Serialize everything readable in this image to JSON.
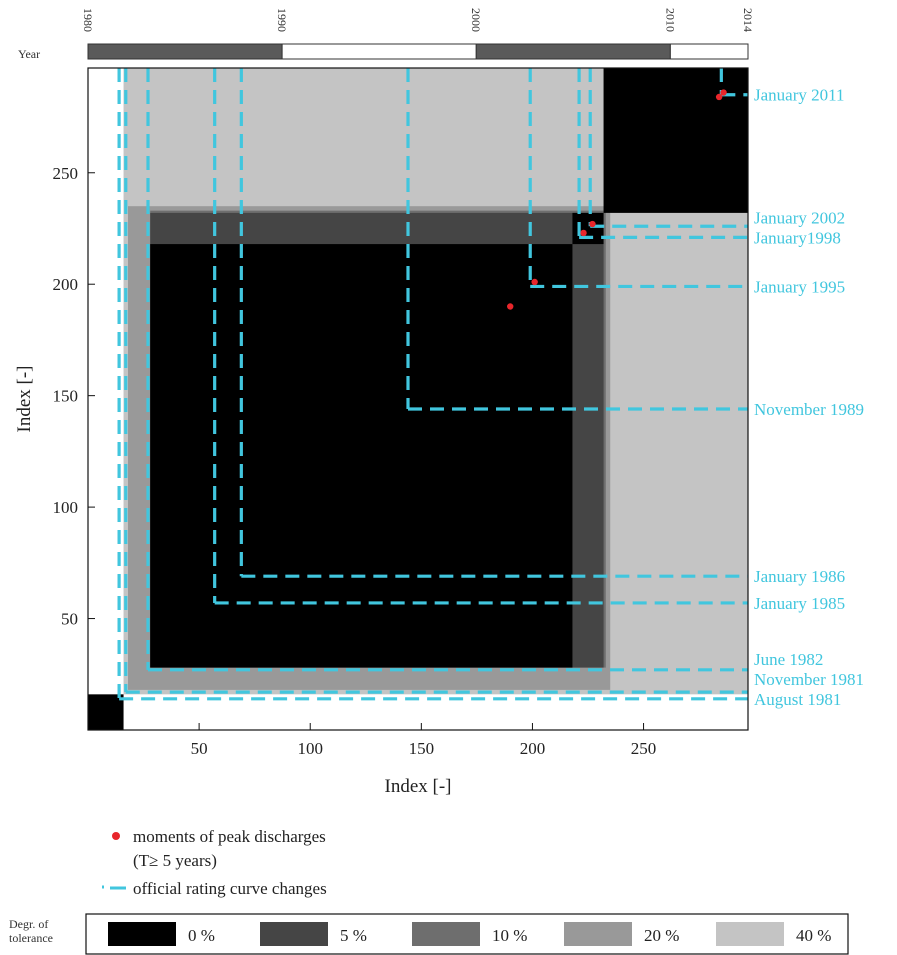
{
  "chart_data": {
    "type": "heatmap",
    "title": "",
    "xlabel": "Index [-]",
    "ylabel": "Index [-]",
    "xlim": [
      0,
      297
    ],
    "ylim": [
      0,
      297
    ],
    "x_ticks": [
      50,
      100,
      150,
      200,
      250
    ],
    "y_ticks": [
      50,
      100,
      150,
      200,
      250
    ],
    "year_bar": {
      "label": "Year",
      "ticks": [
        "1980",
        "1990",
        "2000",
        "2010",
        "2014"
      ],
      "segments": [
        {
          "from": "1980",
          "to": "1990",
          "fill": "#5a5a5a"
        },
        {
          "from": "1990",
          "to": "2000",
          "fill": "#ffffff"
        },
        {
          "from": "2000",
          "to": "2010",
          "fill": "#5a5a5a"
        },
        {
          "from": "2010",
          "to": "2014",
          "fill": "#ffffff"
        }
      ]
    },
    "tolerance_levels": [
      {
        "label": "0 %",
        "color": "#000000"
      },
      {
        "label": "5 %",
        "color": "#454545"
      },
      {
        "label": "10 %",
        "color": "#6e6e6e"
      },
      {
        "label": "20 %",
        "color": "#999999"
      },
      {
        "label": "40 %",
        "color": "#c4c4c4"
      }
    ],
    "tolerance_blocks": [
      {
        "level": 4,
        "from": 16,
        "to": 297
      },
      {
        "level": 3,
        "from": 18,
        "to": 235
      },
      {
        "level": 2,
        "from": 28,
        "to": 233
      },
      {
        "level": 1,
        "from": 28,
        "to": 232
      },
      {
        "level": 0,
        "from": 28,
        "to": 218
      },
      {
        "level": 0,
        "from": 0,
        "to": 16
      },
      {
        "level": 0,
        "from": 218,
        "to": 232
      },
      {
        "level": 0,
        "from": 232,
        "to": 297
      }
    ],
    "peak_discharges": [
      {
        "x": 190,
        "y": 190
      },
      {
        "x": 201,
        "y": 201
      },
      {
        "x": 223,
        "y": 223
      },
      {
        "x": 227,
        "y": 227
      },
      {
        "x": 284,
        "y": 284
      },
      {
        "x": 286,
        "y": 286
      }
    ],
    "rating_curve_changes": [
      {
        "label": "August 1981",
        "index": 14
      },
      {
        "label": "November 1981",
        "index": 17
      },
      {
        "label": "June 1982",
        "index": 27
      },
      {
        "label": "January 1985",
        "index": 57
      },
      {
        "label": "January 1986",
        "index": 69
      },
      {
        "label": "November 1989",
        "index": 144
      },
      {
        "label": "January 1995",
        "index": 199
      },
      {
        "label": "January1998",
        "index": 221
      },
      {
        "label": "January 2002",
        "index": 226
      },
      {
        "label": "January 2011",
        "index": 285
      }
    ],
    "legend": {
      "peak_label": "moments of peak discharges",
      "peak_sub": "(T≥ 5 years)",
      "change_label": "official rating curve changes",
      "tolerance_title_1": "Degr. of",
      "tolerance_title_2": "tolerance"
    },
    "colors": {
      "change_line": "#41c6de",
      "peak_point": "#e8262b"
    }
  }
}
